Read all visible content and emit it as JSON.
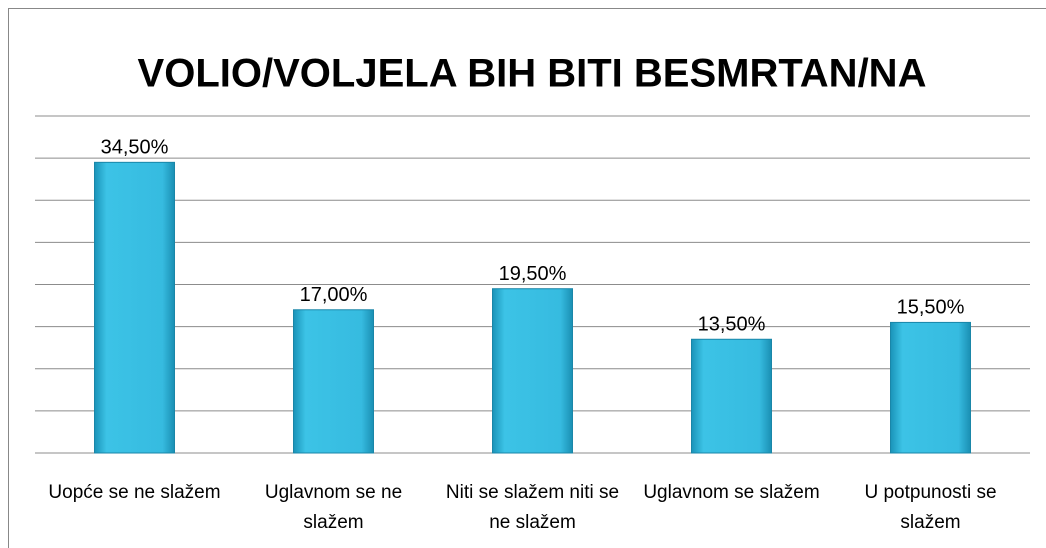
{
  "chart_data": {
    "type": "bar",
    "title": "VOLIO/VOLJELA BIH BITI BESMRTAN/NA",
    "categories": [
      "Uopće se ne slažem",
      "Uglavnom se ne slažem",
      "Niti se slažem niti se ne slažem",
      "Uglavnom se slažem",
      "U potpunosti se slažem"
    ],
    "values": [
      34.5,
      17,
      19.5,
      13.5,
      15.5
    ],
    "value_labels": [
      "34,50%",
      "17,00%",
      "19,50%",
      "13,50%",
      "15,50%"
    ],
    "color": "#2fb4da",
    "ylim": [
      0,
      40
    ],
    "yticks": [
      0,
      5,
      10,
      15,
      20,
      25,
      30,
      35,
      40
    ],
    "grid": true
  }
}
